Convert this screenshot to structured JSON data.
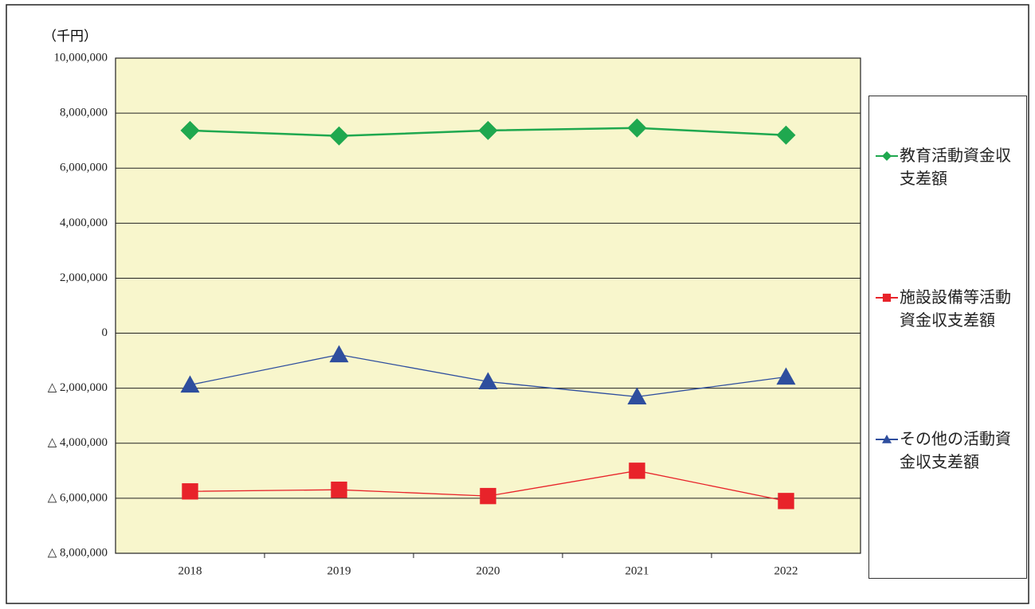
{
  "chart_data": {
    "type": "line",
    "unit_label": "（千円）",
    "categories": [
      "2018",
      "2019",
      "2020",
      "2021",
      "2022"
    ],
    "series": [
      {
        "name": "教育活動資金収支差額",
        "color": "#1fa84f",
        "marker": "diamond",
        "values": [
          7370000,
          7170000,
          7370000,
          7460000,
          7200000
        ]
      },
      {
        "name": "施設設備等活動資金収支差額",
        "color": "#e8232a",
        "marker": "square",
        "values": [
          -5750000,
          -5690000,
          -5920000,
          -5000000,
          -6100000
        ]
      },
      {
        "name": "その他の活動資金収支差額",
        "color": "#2e4e9e",
        "marker": "triangle",
        "values": [
          -1880000,
          -780000,
          -1760000,
          -2310000,
          -1590000
        ]
      }
    ],
    "ylim": [
      -8000000,
      10000000
    ],
    "yticks": [
      {
        "value": -8000000,
        "label": "△ 8,000,000"
      },
      {
        "value": -6000000,
        "label": "△ 6,000,000"
      },
      {
        "value": -4000000,
        "label": "△ 4,000,000"
      },
      {
        "value": -2000000,
        "label": "△ 2,000,000"
      },
      0,
      {
        "value": 2000000,
        "label": "2,000,000"
      },
      {
        "value": 4000000,
        "label": "4,000,000"
      },
      {
        "value": 6000000,
        "label": "6,000,000"
      },
      {
        "value": 8000000,
        "label": "8,000,000"
      },
      {
        "value": 10000000,
        "label": "10,000,000"
      }
    ],
    "grid": true,
    "legend_position": "right"
  }
}
